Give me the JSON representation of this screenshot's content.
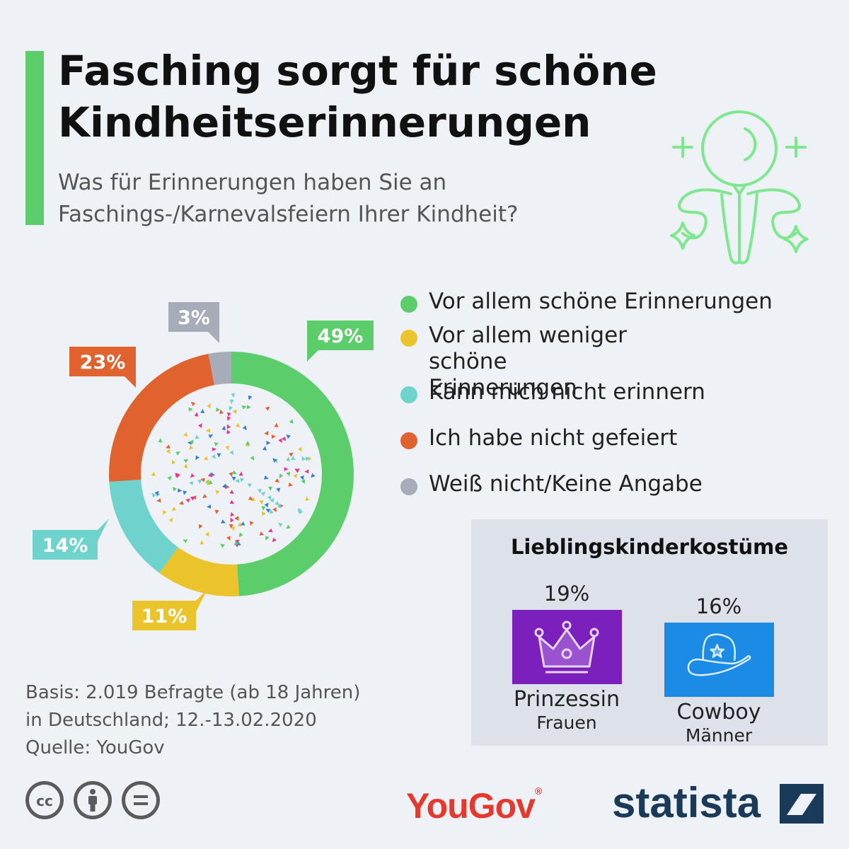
{
  "header": {
    "title": "Fasching sorgt für schöne Kindheitserinnerungen",
    "subtitle": "Was für Erinnerungen haben Sie an Faschings-/Karnevalsfeiern Ihrer Kindheit?"
  },
  "chart_data": {
    "type": "pie",
    "donut": true,
    "categories": [
      "Vor allem schöne Erinnerungen",
      "Vor allem weniger schöne Erinnerungen",
      "Kann mich nicht erinnern",
      "Ich habe nicht gefeiert",
      "Weiß nicht/Keine Angabe"
    ],
    "values": [
      49,
      11,
      14,
      23,
      3
    ],
    "value_labels": [
      "49%",
      "11%",
      "14%",
      "23%",
      "3%"
    ],
    "colors": [
      "#5ccd6b",
      "#ebc42c",
      "#6dd3cc",
      "#e0622f",
      "#a6adb8"
    ],
    "legend_position": "right"
  },
  "legend": {
    "items": [
      {
        "label": "Vor allem schöne Erinnerungen",
        "color": "#5ccd6b"
      },
      {
        "label": "Vor allem weniger schöne Erinnerungen",
        "color": "#ebc42c"
      },
      {
        "label": "Kann mich nicht erinnern",
        "color": "#6dd3cc"
      },
      {
        "label": "Ich habe nicht gefeiert",
        "color": "#e0622f"
      },
      {
        "label": "Weiß nicht/Keine Angabe",
        "color": "#a6adb8"
      }
    ]
  },
  "costumes": {
    "title": "Lieblingskinderkostüme",
    "items": [
      {
        "percent": "19%",
        "name": "Prinzessin",
        "group": "Frauen",
        "color": "#7b1fbd",
        "icon": "crown-icon"
      },
      {
        "percent": "16%",
        "name": "Cowboy",
        "group": "Männer",
        "color": "#1b8be6",
        "icon": "cowboy-hat-icon"
      }
    ]
  },
  "source": {
    "line1": "Basis: 2.019 Befragte (ab 18 Jahren)",
    "line2": "in Deutschland; 12.-13.02.2020",
    "line3": "Quelle: YouGov"
  },
  "logos": {
    "yougov": "YouGov",
    "statista": "statista"
  },
  "colors": {
    "accent": "#5ccd6b",
    "background": "#eef1f5"
  }
}
